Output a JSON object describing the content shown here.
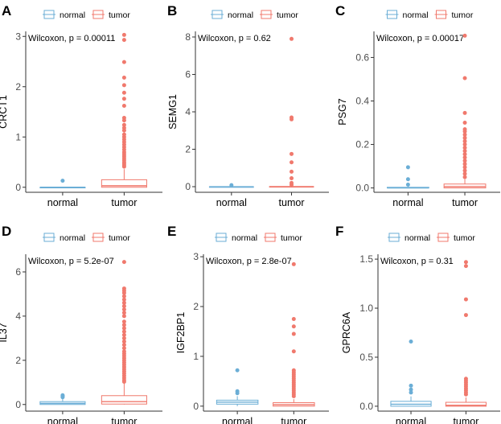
{
  "figure": {
    "colors": {
      "normal": "#6BAED6",
      "tumor": "#F0796D",
      "text": "#000000",
      "axis": "#333333"
    }
  },
  "chart_data": [
    {
      "panel": "A",
      "type": "box",
      "title": "",
      "xlabel": "",
      "ylabel": "CRCT1",
      "categories": [
        "normal",
        "tumor"
      ],
      "legend": {
        "placement": "top",
        "entries": [
          "normal",
          "tumor"
        ]
      },
      "annotation": "Wilcoxon, p = 0.00011",
      "ylim": [
        -0.1,
        3.1
      ],
      "yticks": [
        0,
        1,
        2,
        3
      ],
      "ytick_labels": [
        "0",
        "1",
        "2",
        "3"
      ],
      "series": [
        {
          "name": "normal",
          "q1": 0,
          "median": 0,
          "q3": 0,
          "whisker_low": 0,
          "whisker_high": 0,
          "outliers": [
            0.13
          ]
        },
        {
          "name": "tumor",
          "q1": 0.0,
          "median": 0.03,
          "q3": 0.15,
          "whisker_low": 0,
          "whisker_high": 0.36,
          "outliers": [
            3.03,
            2.93,
            2.49,
            2.18,
            2.03,
            1.88,
            1.76,
            1.62,
            1.38,
            1.33,
            1.24,
            1.18,
            1.13,
            1.05,
            1.0,
            0.95,
            0.9,
            0.85,
            0.8,
            0.75,
            0.7,
            0.66,
            0.62,
            0.58,
            0.54,
            0.5,
            0.47,
            0.44,
            0.41
          ]
        }
      ]
    },
    {
      "panel": "B",
      "type": "box",
      "title": "",
      "xlabel": "",
      "ylabel": "SEMG1",
      "categories": [
        "normal",
        "tumor"
      ],
      "legend": {
        "placement": "top",
        "entries": [
          "normal",
          "tumor"
        ]
      },
      "annotation": "Wilcoxon, p = 0.62",
      "ylim": [
        -0.3,
        8.3
      ],
      "yticks": [
        0,
        2,
        4,
        6,
        8
      ],
      "ytick_labels": [
        "0",
        "2",
        "4",
        "6",
        "8"
      ],
      "series": [
        {
          "name": "normal",
          "q1": 0,
          "median": 0,
          "q3": 0,
          "whisker_low": 0,
          "whisker_high": 0,
          "outliers": [
            0.08
          ]
        },
        {
          "name": "tumor",
          "q1": 0,
          "median": 0,
          "q3": 0.01,
          "whisker_low": 0,
          "whisker_high": 0.02,
          "outliers": [
            7.9,
            3.7,
            3.6,
            1.75,
            1.3,
            0.8,
            0.45,
            0.2,
            0.1
          ]
        }
      ]
    },
    {
      "panel": "C",
      "type": "box",
      "title": "",
      "xlabel": "",
      "ylabel": "PSG7",
      "categories": [
        "normal",
        "tumor"
      ],
      "legend": {
        "placement": "top",
        "entries": [
          "normal",
          "tumor"
        ]
      },
      "annotation": "Wilcoxon, p = 0.00017",
      "ylim": [
        -0.02,
        0.72
      ],
      "yticks": [
        0,
        0.2,
        0.4,
        0.6
      ],
      "ytick_labels": [
        "0.0",
        "0.2",
        "0.4",
        "0.6"
      ],
      "series": [
        {
          "name": "normal",
          "q1": 0,
          "median": 0,
          "q3": 0.003,
          "whisker_low": 0,
          "whisker_high": 0.005,
          "outliers": [
            0.095,
            0.04,
            0.015
          ]
        },
        {
          "name": "tumor",
          "q1": 0.0,
          "median": 0.006,
          "q3": 0.018,
          "whisker_low": 0,
          "whisker_high": 0.04,
          "outliers": [
            0.7,
            0.505,
            0.345,
            0.3,
            0.27,
            0.26,
            0.245,
            0.23,
            0.215,
            0.2,
            0.185,
            0.17,
            0.155,
            0.14,
            0.125,
            0.11,
            0.095,
            0.08,
            0.065,
            0.05
          ]
        }
      ]
    },
    {
      "panel": "D",
      "type": "box",
      "title": "",
      "xlabel": "",
      "ylabel": "IL37",
      "categories": [
        "normal",
        "tumor"
      ],
      "legend": {
        "placement": "top",
        "entries": [
          "normal",
          "tumor"
        ]
      },
      "annotation": "Wilcoxon, p = 5.2e-07",
      "ylim": [
        -0.3,
        6.8
      ],
      "yticks": [
        0,
        2,
        4,
        6
      ],
      "ytick_labels": [
        "0",
        "2",
        "4",
        "6"
      ],
      "series": [
        {
          "name": "normal",
          "q1": 0.0,
          "median": 0.05,
          "q3": 0.13,
          "whisker_low": 0,
          "whisker_high": 0.28,
          "outliers": [
            0.42,
            0.38,
            0.33
          ]
        },
        {
          "name": "tumor",
          "q1": 0.02,
          "median": 0.13,
          "q3": 0.4,
          "whisker_low": 0,
          "whisker_high": 0.98,
          "outliers": [
            6.45,
            5.25,
            5.15,
            5.05,
            4.9,
            4.75,
            4.6,
            4.45,
            4.3,
            4.15,
            4.0,
            3.75,
            3.6,
            3.45,
            3.3,
            3.15,
            3.0,
            2.85,
            2.7,
            2.55,
            2.4,
            2.3,
            2.2,
            2.1,
            2.0,
            1.9,
            1.8,
            1.7,
            1.6,
            1.5,
            1.4,
            1.3,
            1.2,
            1.1,
            1.03
          ]
        }
      ]
    },
    {
      "panel": "E",
      "type": "box",
      "title": "",
      "xlabel": "",
      "ylabel": "IGF2BP1",
      "categories": [
        "normal",
        "tumor"
      ],
      "legend": {
        "placement": "top",
        "entries": [
          "normal",
          "tumor"
        ]
      },
      "annotation": "Wilcoxon, p = 2.8e-07",
      "ylim": [
        -0.1,
        3.05
      ],
      "yticks": [
        0,
        1,
        2,
        3
      ],
      "ytick_labels": [
        "0",
        "1",
        "2",
        "3"
      ],
      "series": [
        {
          "name": "normal",
          "q1": 0.04,
          "median": 0.08,
          "q3": 0.12,
          "whisker_low": 0,
          "whisker_high": 0.2,
          "outliers": [
            0.72,
            0.3,
            0.26
          ]
        },
        {
          "name": "tumor",
          "q1": 0.0,
          "median": 0.03,
          "q3": 0.07,
          "whisker_low": 0,
          "whisker_high": 0.14,
          "outliers": [
            2.85,
            1.75,
            1.6,
            1.45,
            1.1,
            0.72,
            0.68,
            0.64,
            0.6,
            0.56,
            0.52,
            0.48,
            0.44,
            0.4,
            0.36,
            0.32,
            0.28,
            0.24,
            0.2
          ]
        }
      ]
    },
    {
      "panel": "F",
      "type": "box",
      "title": "",
      "xlabel": "",
      "ylabel": "GPRC6A",
      "categories": [
        "normal",
        "tumor"
      ],
      "legend": {
        "placement": "top",
        "entries": [
          "normal",
          "tumor"
        ]
      },
      "annotation": "Wilcoxon, p = 0.31",
      "ylim": [
        -0.05,
        1.55
      ],
      "yticks": [
        0,
        0.5,
        1.0,
        1.5
      ],
      "ytick_labels": [
        "0.0",
        "0.5",
        "1.0",
        "1.5"
      ],
      "series": [
        {
          "name": "normal",
          "q1": 0.0,
          "median": 0.02,
          "q3": 0.05,
          "whisker_low": 0,
          "whisker_high": 0.1,
          "outliers": [
            0.66,
            0.21,
            0.17,
            0.14
          ]
        },
        {
          "name": "tumor",
          "q1": 0.0,
          "median": 0.01,
          "q3": 0.04,
          "whisker_low": 0,
          "whisker_high": 0.09,
          "outliers": [
            1.47,
            1.43,
            1.09,
            0.93,
            0.28,
            0.26,
            0.24,
            0.22,
            0.2,
            0.18,
            0.16,
            0.14,
            0.12
          ]
        }
      ]
    }
  ]
}
